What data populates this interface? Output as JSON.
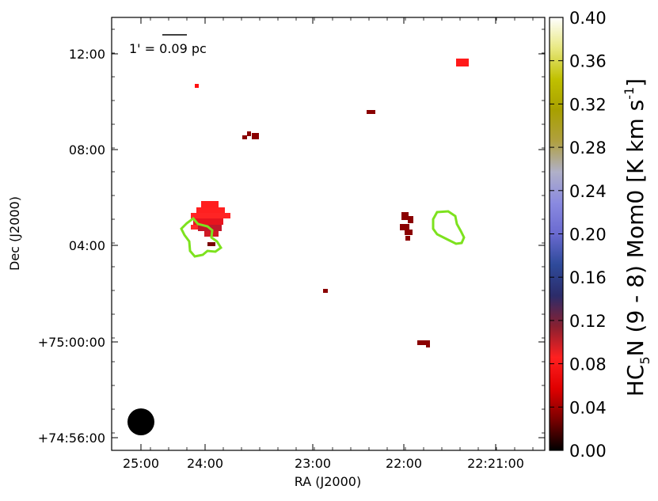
{
  "chart_data": {
    "type": "heatmap",
    "xlabel": "RA (J2000)",
    "ylabel": "Dec (J2000)",
    "x_ticks": [
      "25:00",
      "24:00",
      "23:00",
      "22:00",
      "22:21:00"
    ],
    "y_ticks": [
      "+74:56:00",
      "+75:00:00",
      "04:00",
      "08:00",
      "12:00"
    ],
    "scale_bar_label": "1' = 0.09 pc",
    "colorbar": {
      "title_prefix": "HC",
      "title_sub": "5",
      "title_mid": "N (9 - 8) Mom0 [K km s",
      "title_sup": "-1",
      "title_end": "]",
      "ticks": [
        "0.00",
        "0.04",
        "0.08",
        "0.12",
        "0.16",
        "0.20",
        "0.24",
        "0.28",
        "0.32",
        "0.36",
        "0.40"
      ],
      "range": [
        0.0,
        0.4
      ],
      "colors": [
        "#000000",
        "#7a0000",
        "#e00000",
        "#ff2020",
        "#8a2030",
        "#2c2c6a",
        "#2e4a9a",
        "#6a6ad0",
        "#8a8ae0",
        "#b0b0c8",
        "#b0a040",
        "#a8a000",
        "#c0c000",
        "#e8e880",
        "#ffffff"
      ]
    },
    "emission_pixels": [
      {
        "ra": "24:01",
        "dec": "05:20",
        "value": 0.05
      },
      {
        "ra": "24:00",
        "dec": "04:50",
        "value": 0.06
      },
      {
        "ra": "24:06",
        "dec": "10:40",
        "value": 0.03
      },
      {
        "ra": "23:35",
        "dec": "08:30",
        "value": 0.01
      },
      {
        "ra": "22:40",
        "dec": "09:30",
        "value": 0.01
      },
      {
        "ra": "22:00",
        "dec": "04:50",
        "value": 0.01
      },
      {
        "ra": "23:10",
        "dec": "02:10",
        "value": 0.01
      },
      {
        "ra": "21:53",
        "dec": "00:00",
        "value": 0.01
      },
      {
        "ra": "21:35",
        "dec": "11:40",
        "value": 0.03
      }
    ],
    "contours": [
      "green contour near 24:10, +74:04:30",
      "green contour near 21:45, +74:05:00"
    ],
    "beam": "filled black circle, lower-left"
  }
}
